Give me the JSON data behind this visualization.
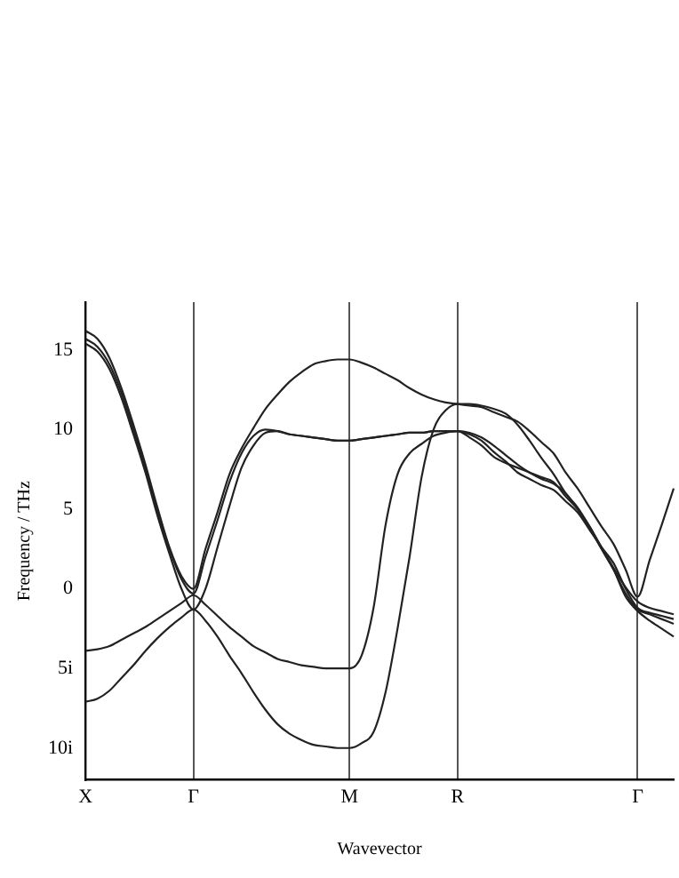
{
  "chart_data": {
    "type": "line",
    "xlabel": "Wavevector",
    "ylabel": "Frequency / THz",
    "categories": [
      "X",
      null,
      null,
      null,
      null,
      null,
      null,
      null,
      null,
      "Γ",
      null,
      null,
      null,
      null,
      null,
      null,
      null,
      null,
      null,
      null,
      null,
      null,
      "M",
      null,
      null,
      null,
      null,
      null,
      null,
      null,
      null,
      "R",
      null,
      null,
      null,
      null,
      null,
      null,
      null,
      null,
      null,
      null,
      null,
      null,
      null,
      null,
      "Γ",
      null,
      null,
      null
    ],
    "ylim": [
      -12,
      18
    ],
    "yticks": [
      {
        "value": -10,
        "label": "10i"
      },
      {
        "value": -5,
        "label": "5i"
      },
      0,
      5,
      10,
      15
    ],
    "grid": "x",
    "legend": false,
    "marker": "none",
    "line_style": "solid",
    "series": [
      {
        "color": "#222222",
        "values": [
          16.2,
          15.7,
          14.5,
          12.6,
          10.3,
          7.8,
          5.1,
          2.6,
          0.8,
          0,
          2.5,
          4.8,
          7.2,
          8.8,
          10.1,
          11.3,
          12.2,
          13.0,
          13.6,
          14.1,
          14.3,
          14.4,
          14.4,
          14.2,
          13.9,
          13.5,
          13.1,
          12.6,
          12.2,
          11.9,
          11.7,
          11.6,
          11.5,
          11.4,
          11.1,
          10.8,
          10.5,
          9.9,
          9.2,
          8.5,
          7.3,
          6.3,
          5.1,
          3.9,
          2.8,
          1.2,
          -0.5,
          1.8,
          4.0,
          6.3
        ]
      },
      {
        "color": "#222222",
        "values": [
          15.7,
          15.2,
          14.1,
          12.3,
          10.0,
          7.6,
          4.9,
          2.5,
          0.6,
          -0.3,
          2.0,
          4.3,
          6.7,
          8.5,
          9.6,
          10.0,
          9.9,
          9.7,
          9.6,
          9.5,
          9.4,
          9.3,
          9.3,
          9.4,
          9.5,
          9.6,
          9.7,
          9.8,
          9.8,
          9.9,
          9.9,
          9.9,
          9.7,
          9.3,
          8.6,
          8.0,
          7.3,
          6.9,
          6.5,
          6.2,
          5.5,
          4.8,
          3.7,
          2.6,
          1.6,
          0,
          -1.2,
          -1.5,
          -1.7,
          -1.9
        ]
      },
      {
        "color": "#222222",
        "values": [
          15.4,
          14.9,
          13.8,
          12.0,
          9.7,
          7.3,
          4.6,
          2.2,
          0.0,
          -1.3,
          0.0,
          2.6,
          5.2,
          7.6,
          9.0,
          9.8,
          9.9,
          9.7,
          9.6,
          9.5,
          9.4,
          9.3,
          9.3,
          9.4,
          9.5,
          9.6,
          9.7,
          9.8,
          9.8,
          9.9,
          9.9,
          9.9,
          9.8,
          9.5,
          9.0,
          8.4,
          7.8,
          7.3,
          6.9,
          6.6,
          6.0,
          5.0,
          3.9,
          2.5,
          1.2,
          -0.5,
          -1.4,
          -2.0,
          -2.5,
          -3.0
        ]
      },
      {
        "color": "#222222",
        "values": [
          -3.9,
          -3.8,
          -3.6,
          -3.2,
          -2.8,
          -2.4,
          -1.9,
          -1.4,
          -0.9,
          -0.4,
          -1.0,
          -1.7,
          -2.4,
          -3.0,
          -3.6,
          -4.0,
          -4.4,
          -4.6,
          -4.8,
          -4.9,
          -5.0,
          -5.0,
          -5.0,
          -4.2,
          -1.2,
          4.0,
          7.2,
          8.5,
          9.1,
          9.6,
          9.8,
          9.9,
          9.5,
          9.0,
          8.3,
          7.9,
          7.6,
          7.3,
          7.0,
          6.7,
          5.8,
          5.0,
          3.8,
          2.5,
          1.2,
          -0.3,
          -1.3,
          -1.6,
          -1.9,
          -2.2
        ]
      },
      {
        "color": "#222222",
        "values": [
          -7.1,
          -6.9,
          -6.4,
          -5.6,
          -4.8,
          -3.9,
          -3.1,
          -2.4,
          -1.8,
          -1.3,
          -2.0,
          -3.0,
          -4.2,
          -5.3,
          -6.5,
          -7.6,
          -8.5,
          -9.1,
          -9.5,
          -9.8,
          -9.9,
          -10,
          -10,
          -9.7,
          -9.0,
          -6.5,
          -2.5,
          2.0,
          7.0,
          10.0,
          11.2,
          11.6,
          11.6,
          11.5,
          11.3,
          11.0,
          10.3,
          9.3,
          8.2,
          7.2,
          6.0,
          5.1,
          3.9,
          2.6,
          1.3,
          0.1,
          -0.8,
          -1.2,
          -1.4,
          -1.6
        ]
      }
    ]
  }
}
